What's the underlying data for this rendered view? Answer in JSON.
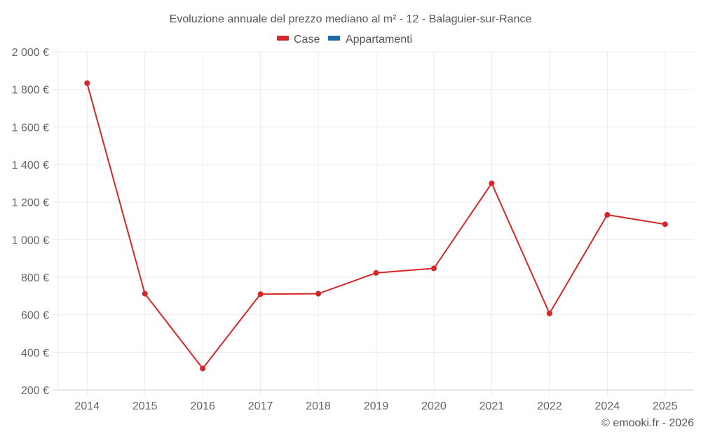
{
  "chart_data": {
    "type": "line",
    "title": "Evoluzione annuale del prezzo mediano al m² - 12 - Balaguier-sur-Rance",
    "xlabel": "",
    "ylabel": "",
    "categories": [
      "2014",
      "2015",
      "2016",
      "2017",
      "2018",
      "2019",
      "2020",
      "2021",
      "2022",
      "2024",
      "2025"
    ],
    "series": [
      {
        "name": "Case",
        "color": "#d62728",
        "values": [
          1833,
          712,
          314,
          710,
          712,
          823,
          847,
          1300,
          607,
          1132,
          1082
        ]
      },
      {
        "name": "Appartamenti",
        "color": "#1f6aa5",
        "values": []
      }
    ],
    "ylim": [
      200,
      2000
    ],
    "yticks": [
      200,
      400,
      600,
      800,
      1000,
      1200,
      1400,
      1600,
      1800,
      2000
    ],
    "ytick_labels": [
      "200 €",
      "400 €",
      "600 €",
      "800 €",
      "1 000 €",
      "1 200 €",
      "1 400 €",
      "1 600 €",
      "1 800 €",
      "2 000 €"
    ],
    "grid": true,
    "legend_position": "top"
  },
  "footer": {
    "credit": "© emooki.fr - 2026"
  }
}
